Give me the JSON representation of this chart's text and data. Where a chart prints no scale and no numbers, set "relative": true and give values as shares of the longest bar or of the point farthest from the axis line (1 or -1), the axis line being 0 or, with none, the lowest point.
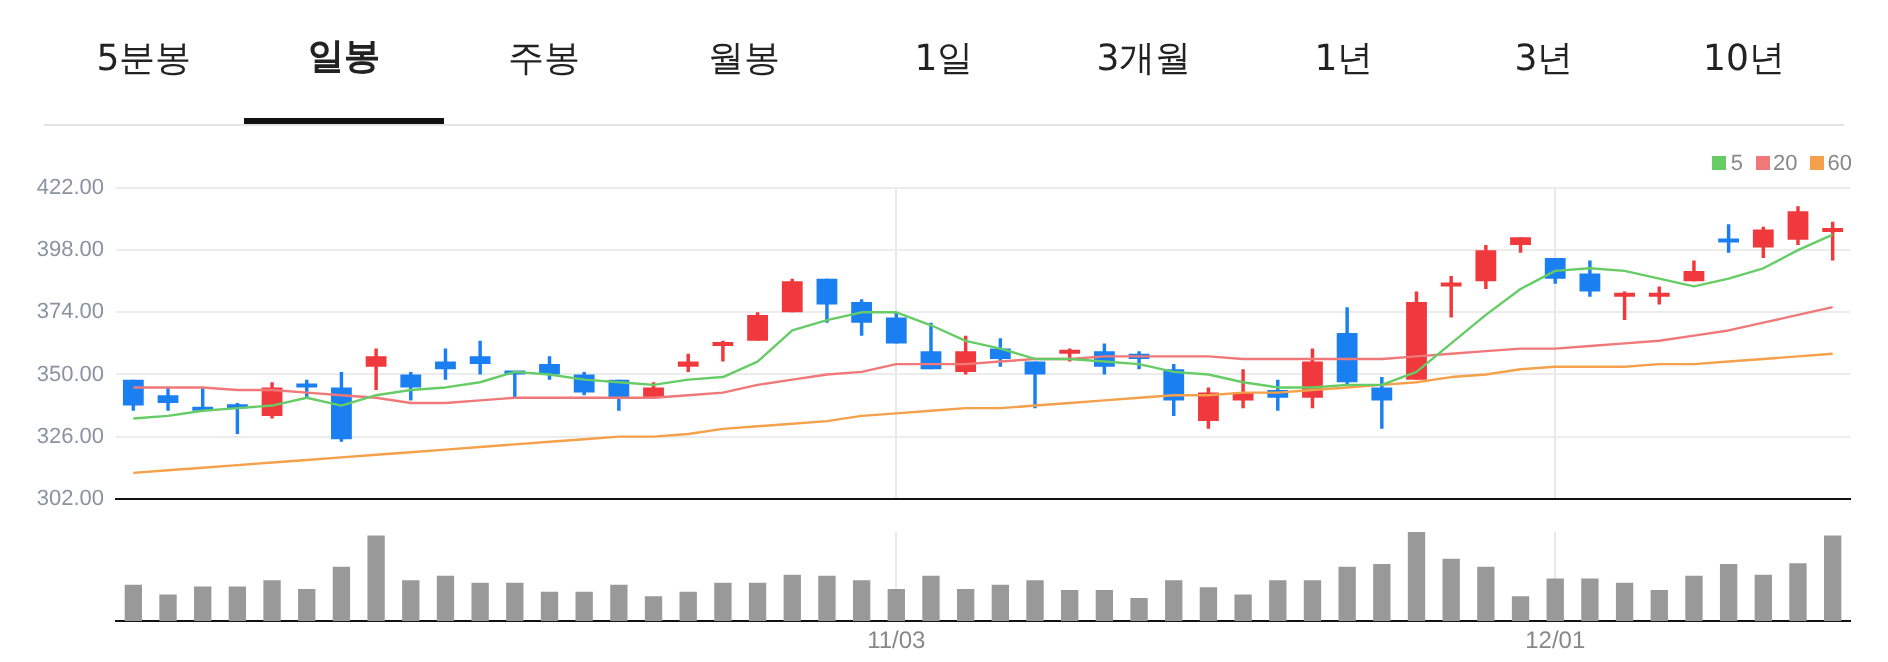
{
  "chart_data": [
    {
      "type": "candlestick",
      "annotations": [
        "5분봉",
        "일봉",
        "주봉",
        "월봉",
        "1일",
        "3개월",
        "1년",
        "3년",
        "10년"
      ],
      "categories": [
        null,
        null,
        null,
        null,
        null,
        null,
        null,
        null,
        null,
        null,
        null,
        null,
        null,
        null,
        null,
        null,
        null,
        null,
        null,
        null,
        null,
        null,
        null,
        null,
        null,
        null,
        null,
        null,
        null,
        null,
        null,
        null,
        null,
        null,
        null,
        null,
        null,
        null,
        null,
        null,
        null,
        null,
        null,
        null,
        null,
        null,
        null,
        null,
        null,
        null
      ],
      "ohlc": [
        [
          348,
          348,
          336,
          338
        ],
        [
          342,
          345,
          336,
          339
        ],
        [
          337,
          345,
          336,
          336
        ],
        [
          338,
          339,
          327,
          337
        ],
        [
          334,
          347,
          333,
          345
        ],
        [
          346,
          348,
          341,
          345
        ],
        [
          345,
          351,
          324,
          325
        ],
        [
          353,
          360,
          344,
          357
        ],
        [
          350,
          351,
          340,
          345
        ],
        [
          355,
          360,
          348,
          352
        ],
        [
          357,
          363,
          350,
          354
        ],
        [
          351,
          351,
          341,
          350
        ],
        [
          354,
          357,
          348,
          350
        ],
        [
          350,
          351,
          342,
          343
        ],
        [
          348,
          348,
          336,
          341
        ],
        [
          341,
          347,
          341,
          345
        ],
        [
          353,
          358,
          351,
          355
        ],
        [
          361,
          363,
          355,
          362
        ],
        [
          363,
          374,
          363,
          373
        ],
        [
          374,
          387,
          374,
          386
        ],
        [
          387,
          387,
          370,
          377
        ],
        [
          378,
          379,
          365,
          370
        ],
        [
          372,
          374,
          362,
          362
        ],
        [
          359,
          370,
          352,
          352
        ],
        [
          351,
          365,
          350,
          359
        ],
        [
          360,
          364,
          353,
          356
        ],
        [
          355,
          355,
          337,
          350
        ],
        [
          358,
          360,
          355,
          359
        ],
        [
          359,
          362,
          350,
          353
        ],
        [
          358,
          359,
          352,
          356
        ],
        [
          352,
          354,
          334,
          340
        ],
        [
          332,
          345,
          329,
          343
        ],
        [
          340,
          352,
          337,
          343
        ],
        [
          344,
          348,
          336,
          341
        ],
        [
          341,
          360,
          337,
          355
        ],
        [
          366,
          376,
          346,
          347
        ],
        [
          345,
          349,
          329,
          340
        ],
        [
          348,
          382,
          348,
          378
        ],
        [
          384,
          388,
          372,
          385
        ],
        [
          386,
          400,
          383,
          398
        ],
        [
          400,
          403,
          397,
          403
        ],
        [
          395,
          395,
          385,
          387
        ],
        [
          389,
          394,
          380,
          382
        ],
        [
          380,
          382,
          371,
          381
        ],
        [
          380,
          384,
          377,
          381
        ],
        [
          386,
          394,
          386,
          390
        ],
        [
          402,
          408,
          397,
          401
        ],
        [
          399,
          407,
          395,
          406
        ],
        [
          402,
          415,
          400,
          413
        ],
        [
          405,
          409,
          394,
          406
        ]
      ],
      "colors": [
        "#1a7ff0",
        "#1a7ff0",
        "#1a7ff0",
        "#1a7ff0",
        "#f0393c",
        "#1a7ff0",
        "#1a7ff0",
        "#f0393c",
        "#1a7ff0",
        "#1a7ff0",
        "#1a7ff0",
        "#1a7ff0",
        "#1a7ff0",
        "#1a7ff0",
        "#1a7ff0",
        "#f0393c",
        "#f0393c",
        "#f0393c",
        "#f0393c",
        "#f0393c",
        "#1a7ff0",
        "#1a7ff0",
        "#1a7ff0",
        "#1a7ff0",
        "#f0393c",
        "#1a7ff0",
        "#1a7ff0",
        "#f0393c",
        "#1a7ff0",
        "#1a7ff0",
        "#1a7ff0",
        "#f0393c",
        "#f0393c",
        "#1a7ff0",
        "#f0393c",
        "#1a7ff0",
        "#1a7ff0",
        "#f0393c",
        "#f0393c",
        "#f0393c",
        "#f0393c",
        "#1a7ff0",
        "#1a7ff0",
        "#f0393c",
        "#f0393c",
        "#f0393c",
        "#1a7ff0",
        "#f0393c",
        "#f0393c",
        "#f0393c"
      ],
      "series": [
        {
          "name": "5",
          "type": "line",
          "color": "#66cc66",
          "values": [
            333,
            334,
            336,
            337,
            338,
            341,
            338,
            342,
            344,
            345,
            347,
            351,
            350,
            348,
            347,
            346,
            348,
            349,
            355,
            367,
            371,
            374,
            374,
            369,
            363,
            360,
            356,
            356,
            355,
            354,
            351,
            350,
            347,
            345,
            345,
            346,
            346,
            351,
            362,
            373,
            383,
            390,
            391,
            390,
            387,
            384,
            387,
            391,
            398,
            404
          ]
        },
        {
          "name": "20",
          "type": "line",
          "color": "#f07878",
          "values": [
            345,
            345,
            345,
            344,
            344,
            343,
            342,
            341,
            339,
            339,
            340,
            341,
            341,
            341,
            341,
            341,
            342,
            343,
            346,
            348,
            350,
            351,
            354,
            354,
            354,
            355,
            356,
            356,
            357,
            357,
            357,
            357,
            356,
            356,
            356,
            356,
            356,
            357,
            358,
            359,
            360,
            360,
            361,
            362,
            363,
            365,
            367,
            370,
            373,
            376
          ]
        },
        {
          "name": "60",
          "type": "line",
          "color": "#f5a04a",
          "values": [
            312,
            313,
            314,
            315,
            316,
            317,
            318,
            319,
            320,
            321,
            322,
            323,
            324,
            325,
            326,
            326,
            327,
            329,
            330,
            331,
            332,
            334,
            335,
            336,
            337,
            337,
            338,
            339,
            340,
            341,
            342,
            342,
            343,
            343,
            344,
            345,
            346,
            347,
            349,
            350,
            352,
            353,
            353,
            353,
            354,
            354,
            355,
            356,
            357,
            358
          ]
        }
      ],
      "ylim": [
        302,
        422
      ],
      "yticks": [
        {
          "value": 302,
          "label": "302.00"
        },
        {
          "value": 326,
          "label": "326.00"
        },
        {
          "value": 350,
          "label": "350.00"
        },
        {
          "value": 374,
          "label": "374.00"
        },
        {
          "value": 398,
          "label": "398.00"
        },
        {
          "value": 422,
          "label": "422.00"
        }
      ],
      "grid": true,
      "legend": "top right",
      "tick_labels": "y"
    },
    {
      "type": "bar",
      "relative": true,
      "color": "#999999",
      "grid": "x",
      "tick_labels": "x",
      "categories": [
        null,
        null,
        null,
        null,
        null,
        null,
        null,
        null,
        null,
        null,
        null,
        null,
        null,
        null,
        null,
        null,
        null,
        null,
        null,
        null,
        null,
        null,
        "11/03",
        null,
        null,
        null,
        null,
        null,
        null,
        null,
        null,
        null,
        null,
        null,
        null,
        null,
        null,
        null,
        null,
        null,
        null,
        "12/01",
        null,
        null,
        null,
        null,
        null,
        null,
        null,
        null
      ],
      "values": [
        0.41,
        0.3,
        0.39,
        0.39,
        0.46,
        0.36,
        0.61,
        0.96,
        0.46,
        0.51,
        0.43,
        0.43,
        0.33,
        0.33,
        0.41,
        0.28,
        0.33,
        0.43,
        0.43,
        0.52,
        0.51,
        0.46,
        0.36,
        0.51,
        0.36,
        0.41,
        0.46,
        0.35,
        0.35,
        0.26,
        0.46,
        0.38,
        0.3,
        0.46,
        0.46,
        0.61,
        0.64,
        1,
        0.7,
        0.61,
        0.28,
        0.48,
        0.48,
        0.43,
        0.35,
        0.51,
        0.64,
        0.52,
        0.65,
        0.96
      ]
    }
  ]
}
